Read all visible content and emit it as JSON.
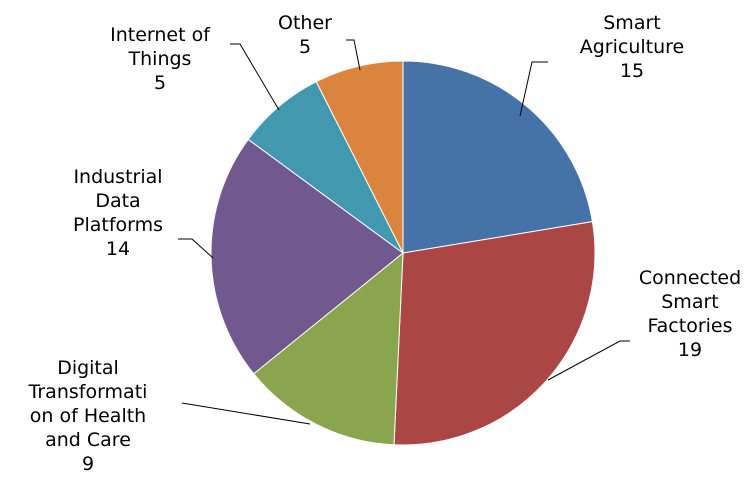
{
  "chart_data": {
    "type": "pie",
    "title": "",
    "start_angle_deg": 0,
    "direction": "clockwise",
    "legend": "none",
    "slices": [
      {
        "label_lines": [
          "Smart",
          "Agriculture"
        ],
        "value": 15,
        "value_text": "15",
        "color": "#4572A7"
      },
      {
        "label_lines": [
          "Connected",
          "Smart",
          "Factories"
        ],
        "value": 19,
        "value_text": "19",
        "color": "#AA4643"
      },
      {
        "label_lines": [
          "Digital",
          "Transformati",
          "on of Health",
          "and Care"
        ],
        "value": 9,
        "value_text": "9",
        "color": "#89A54E"
      },
      {
        "label_lines": [
          "Industrial",
          "Data",
          "Platforms"
        ],
        "value": 14,
        "value_text": "14",
        "color": "#71588F"
      },
      {
        "label_lines": [
          "Internet of",
          "Things"
        ],
        "value": 5,
        "value_text": "5",
        "color": "#4198AF"
      },
      {
        "label_lines": [
          "Other"
        ],
        "value": 5,
        "value_text": "5",
        "color": "#DB843D"
      }
    ]
  }
}
